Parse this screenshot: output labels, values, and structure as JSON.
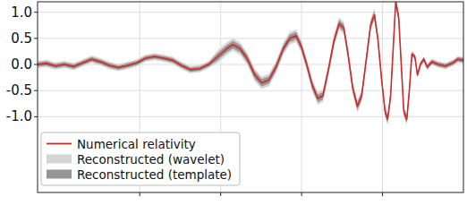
{
  "chart_data": {
    "type": "line",
    "x": [
      0.0,
      2.1,
      4.2,
      6.3,
      8.5,
      10.6,
      12.7,
      14.8,
      16.9,
      19.0,
      21.1,
      23.3,
      25.4,
      27.5,
      29.6,
      31.7,
      33.8,
      35.9,
      38.1,
      40.2,
      42.3,
      44.4,
      45.9,
      47.6,
      49.3,
      51.0,
      52.6,
      54.3,
      56.0,
      57.7,
      59.2,
      60.7,
      61.9,
      63.2,
      64.5,
      65.8,
      67.0,
      68.3,
      69.6,
      70.8,
      71.9,
      72.9,
      74.0,
      75.1,
      76.1,
      77.2,
      78.2,
      79.1,
      79.9,
      80.8,
      81.6,
      82.2,
      82.9,
      83.5,
      84.1,
      84.8,
      85.4,
      86.0,
      86.7,
      87.3,
      87.9,
      88.6,
      89.2,
      89.9,
      90.7,
      91.5,
      92.6,
      94.1,
      95.8,
      97.5,
      98.7,
      100.0
    ],
    "xlim": [
      0,
      100
    ],
    "xticks": [
      24,
      43,
      62,
      81
    ],
    "ylim": [
      -2.45,
      1.2
    ],
    "yticks": [
      {
        "value": -1.0,
        "label": "-1.0"
      },
      -0.5,
      {
        "value": 0.0,
        "label": "0.0"
      },
      0.5,
      {
        "value": 1.0,
        "label": "1.0"
      }
    ],
    "grid": true,
    "legend": "lower left",
    "tick_labels": "y",
    "series": [
      {
        "name": "Reconstructed (wavelet)",
        "type": "band",
        "color": "#d4d4d4",
        "upper": [
          0.07,
          0.09,
          0.04,
          0.07,
          0.03,
          0.1,
          0.17,
          0.12,
          0.05,
          0.01,
          0.05,
          0.1,
          0.19,
          0.22,
          0.19,
          0.15,
          0.05,
          -0.03,
          -0.01,
          0.07,
          0.27,
          0.42,
          0.5,
          0.42,
          0.22,
          -0.08,
          -0.23,
          -0.18,
          0.07,
          0.42,
          0.62,
          0.67,
          0.47,
          0.12,
          -0.28,
          -0.53,
          -0.48,
          0.02,
          0.57,
          0.9,
          0.82,
          0.32,
          -0.33,
          -0.68,
          -0.48,
          0.22,
          0.87,
          1.07,
          0.6,
          -0.2,
          -0.8,
          -0.95,
          -0.5,
          0.4,
          1.3,
          1.0,
          0.1,
          -0.8,
          -0.95,
          -0.4,
          0.26,
          0.21,
          -0.14,
          0.06,
          0.16,
          0.01,
          0.11,
          0.06,
          0.03,
          0.09,
          0.16,
          0.14
        ],
        "lower": [
          -0.07,
          -0.05,
          -0.1,
          -0.07,
          -0.11,
          -0.04,
          0.03,
          -0.02,
          -0.09,
          -0.13,
          -0.09,
          -0.04,
          0.05,
          0.08,
          0.05,
          0.01,
          -0.09,
          -0.17,
          -0.15,
          -0.07,
          0.03,
          0.18,
          0.26,
          0.18,
          -0.02,
          -0.32,
          -0.47,
          -0.42,
          -0.17,
          0.18,
          0.38,
          0.43,
          0.23,
          -0.12,
          -0.52,
          -0.77,
          -0.72,
          -0.22,
          0.33,
          0.66,
          0.58,
          0.08,
          -0.57,
          -0.92,
          -0.72,
          -0.02,
          0.63,
          0.83,
          0.4,
          -0.4,
          -1.0,
          -1.15,
          -0.7,
          0.2,
          1.1,
          0.8,
          -0.1,
          -1.0,
          -1.15,
          -0.6,
          0.14,
          0.09,
          -0.26,
          -0.06,
          0.04,
          -0.11,
          -0.01,
          -0.06,
          -0.09,
          -0.03,
          0.04,
          0.02
        ]
      },
      {
        "name": "Reconstructed (template)",
        "type": "band",
        "color": "#959595",
        "upper": [
          0.04,
          0.06,
          0.01,
          0.04,
          0.0,
          0.07,
          0.14,
          0.09,
          0.02,
          -0.02,
          0.02,
          0.07,
          0.16,
          0.19,
          0.16,
          0.12,
          0.02,
          -0.06,
          -0.04,
          0.04,
          0.22,
          0.37,
          0.45,
          0.37,
          0.17,
          -0.13,
          -0.28,
          -0.23,
          0.02,
          0.37,
          0.57,
          0.62,
          0.42,
          0.07,
          -0.33,
          -0.58,
          -0.53,
          -0.03,
          0.52,
          0.85,
          0.77,
          0.27,
          -0.38,
          -0.73,
          -0.53,
          0.17,
          0.82,
          1.02,
          0.57,
          -0.23,
          -0.83,
          -0.98,
          -0.53,
          0.37,
          1.27,
          0.97,
          0.07,
          -0.83,
          -0.98,
          -0.43,
          0.24,
          0.19,
          -0.16,
          0.04,
          0.14,
          -0.01,
          0.09,
          0.04,
          0.01,
          0.07,
          0.14,
          0.12
        ],
        "lower": [
          -0.04,
          -0.02,
          -0.07,
          -0.04,
          -0.08,
          -0.01,
          0.06,
          0.01,
          -0.06,
          -0.1,
          -0.06,
          -0.01,
          0.08,
          0.11,
          0.08,
          0.04,
          -0.06,
          -0.14,
          -0.12,
          -0.04,
          0.08,
          0.23,
          0.31,
          0.23,
          0.03,
          -0.27,
          -0.42,
          -0.37,
          -0.12,
          0.23,
          0.43,
          0.48,
          0.28,
          -0.07,
          -0.47,
          -0.72,
          -0.67,
          -0.17,
          0.38,
          0.71,
          0.63,
          0.13,
          -0.52,
          -0.87,
          -0.67,
          0.03,
          0.68,
          0.88,
          0.43,
          -0.37,
          -0.97,
          -1.12,
          -0.67,
          0.23,
          1.13,
          0.83,
          -0.07,
          -0.97,
          -1.12,
          -0.57,
          0.16,
          0.11,
          -0.24,
          -0.04,
          0.06,
          -0.09,
          0.01,
          -0.04,
          -0.07,
          -0.01,
          0.06,
          0.04
        ]
      },
      {
        "name": "Numerical relativity",
        "type": "line",
        "color": "#d62728",
        "values": [
          0.0,
          0.02,
          -0.03,
          0.0,
          -0.04,
          0.03,
          0.1,
          0.05,
          -0.02,
          -0.06,
          -0.02,
          0.03,
          0.12,
          0.15,
          0.12,
          0.08,
          -0.02,
          -0.1,
          -0.08,
          0.0,
          0.15,
          0.3,
          0.38,
          0.3,
          0.1,
          -0.2,
          -0.35,
          -0.3,
          -0.05,
          0.3,
          0.5,
          0.55,
          0.35,
          0.0,
          -0.4,
          -0.65,
          -0.6,
          -0.1,
          0.45,
          0.78,
          0.7,
          0.2,
          -0.45,
          -0.8,
          -0.6,
          0.1,
          0.75,
          0.95,
          0.5,
          -0.3,
          -0.9,
          -1.05,
          -0.6,
          0.3,
          1.2,
          0.9,
          0.0,
          -0.9,
          -1.05,
          -0.5,
          0.2,
          0.15,
          -0.2,
          0.0,
          0.1,
          -0.05,
          0.05,
          0.0,
          -0.03,
          0.03,
          0.1,
          0.08
        ]
      }
    ]
  }
}
